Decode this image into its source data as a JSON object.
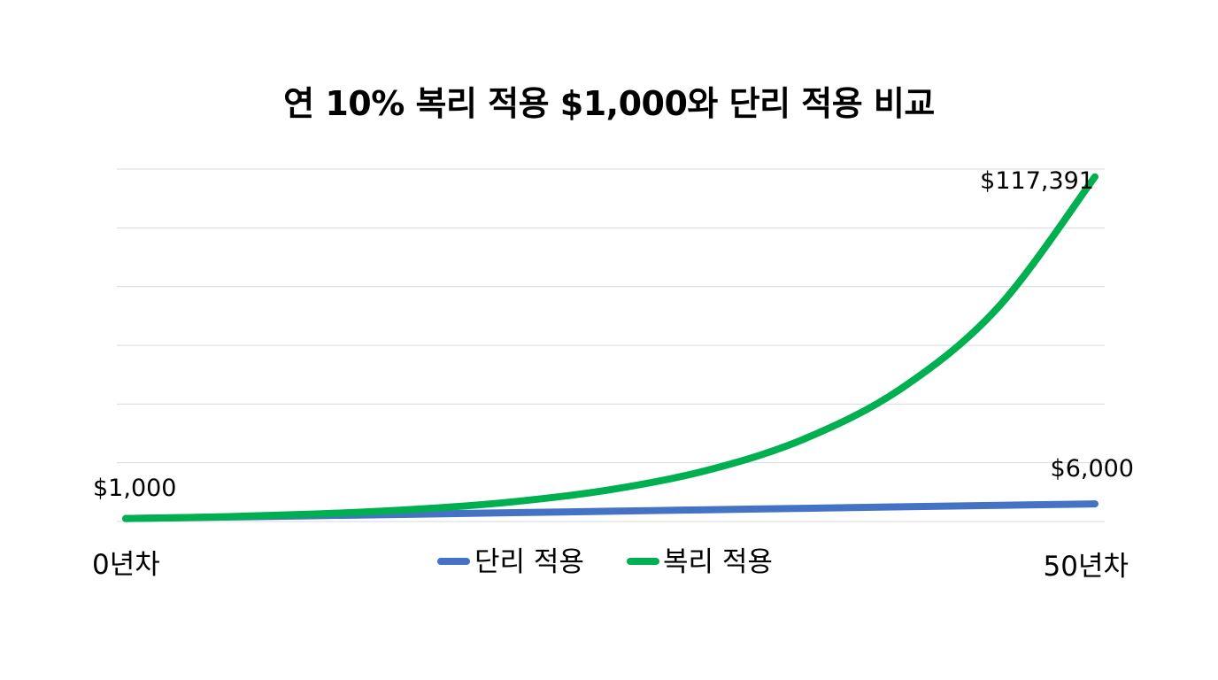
{
  "chart_data": {
    "type": "line",
    "title": "연 10% 복리 적용 $1,000와 단리 적용 비교",
    "xlabel": "",
    "ylabel": "",
    "xlim": [
      0,
      50
    ],
    "ylim": [
      0,
      120000
    ],
    "grid": true,
    "legend_position": "bottom-center",
    "x_tick_labels": {
      "start": "0년차",
      "end": "50년차"
    },
    "series": [
      {
        "name": "단리 적용",
        "color": "#4472C4",
        "x": [
          0,
          5,
          10,
          15,
          20,
          25,
          30,
          35,
          40,
          45,
          50
        ],
        "values": [
          1000,
          1500,
          2000,
          2500,
          3000,
          3500,
          4000,
          4500,
          5000,
          5500,
          6000
        ]
      },
      {
        "name": "복리 적용",
        "color": "#00B050",
        "x": [
          0,
          5,
          10,
          15,
          20,
          25,
          30,
          35,
          40,
          45,
          50
        ],
        "values": [
          1000,
          1611,
          2594,
          4177,
          6727,
          10835,
          17449,
          28102,
          45259,
          72890,
          117391
        ]
      }
    ],
    "annotations": {
      "start_value": "$1,000",
      "simple_end_value": "$6,000",
      "compound_end_value": "$117,391"
    }
  }
}
